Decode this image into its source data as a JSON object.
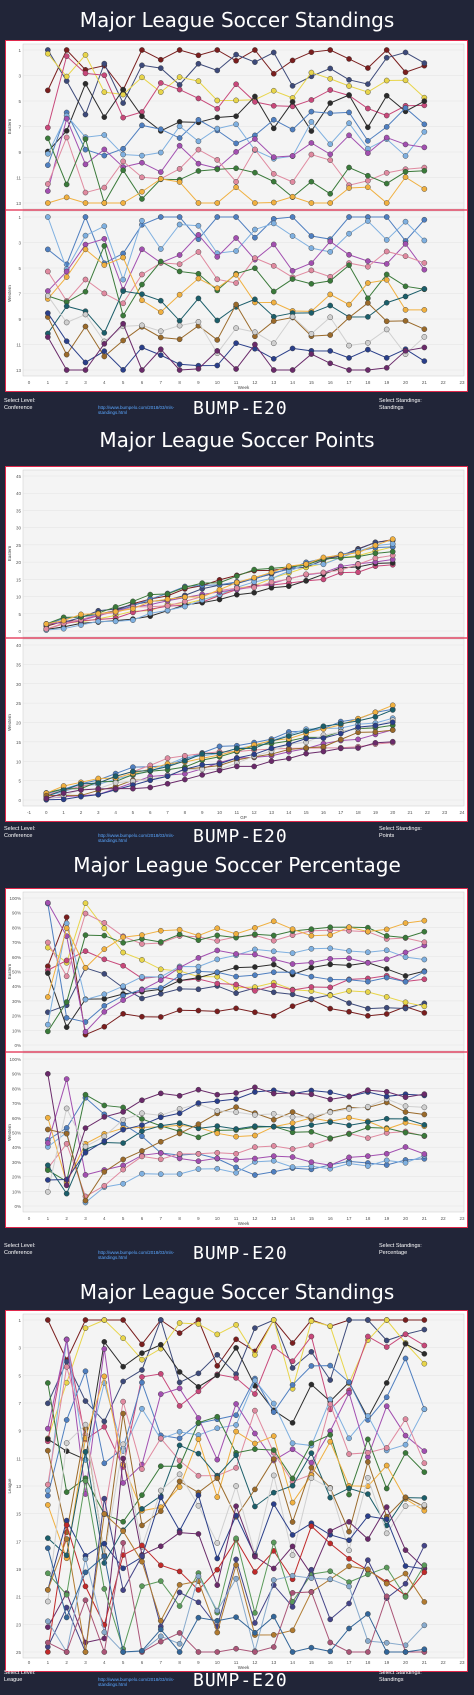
{
  "panels": [
    {
      "title": "Major League Soccer Standings",
      "xlabel": "Week",
      "sections": [
        {
          "label": "Eastern",
          "ticks": [
            "1",
            "3",
            "5",
            "7",
            "9",
            "11",
            "13"
          ]
        },
        {
          "label": "Western",
          "ticks": [
            "1",
            "3",
            "5",
            "7",
            "9",
            "11",
            "13"
          ]
        }
      ],
      "xticks": [
        "0",
        "1",
        "2",
        "3",
        "4",
        "5",
        "6",
        "7",
        "8",
        "9",
        "10",
        "11",
        "12",
        "13",
        "14",
        "15",
        "16",
        "17",
        "18",
        "19",
        "20",
        "21",
        "22",
        "23"
      ],
      "level": "Conference",
      "standings": "Standings"
    },
    {
      "title": "Major League Soccer Points",
      "xlabel": "GP",
      "sections": [
        {
          "label": "Eastern",
          "ticks": [
            "45",
            "40",
            "35",
            "30",
            "25",
            "20",
            "15",
            "10",
            "5",
            "0"
          ]
        },
        {
          "label": "Western",
          "ticks": [
            "40",
            "35",
            "30",
            "25",
            "20",
            "15",
            "10",
            "5",
            "0"
          ]
        }
      ],
      "xticks": [
        "-1",
        "0",
        "1",
        "2",
        "3",
        "4",
        "5",
        "6",
        "7",
        "8",
        "9",
        "10",
        "11",
        "12",
        "13",
        "14",
        "15",
        "16",
        "17",
        "18",
        "19",
        "20",
        "21",
        "22",
        "23",
        "24"
      ],
      "level": "Conference",
      "standings": "Points"
    },
    {
      "title": "Major League Soccer Percentage",
      "xlabel": "Week",
      "sections": [
        {
          "label": "Eastern",
          "ticks": [
            "100%",
            "90%",
            "80%",
            "70%",
            "60%",
            "50%",
            "40%",
            "30%",
            "20%",
            "10%",
            "0%"
          ]
        },
        {
          "label": "Western",
          "ticks": [
            "100%",
            "90%",
            "80%",
            "70%",
            "60%",
            "50%",
            "40%",
            "30%",
            "20%",
            "10%",
            "0%"
          ]
        }
      ],
      "xticks": [
        "0",
        "1",
        "2",
        "3",
        "4",
        "5",
        "6",
        "7",
        "8",
        "9",
        "10",
        "11",
        "12",
        "13",
        "14",
        "15",
        "16",
        "17",
        "18",
        "19",
        "20",
        "21",
        "22",
        "23"
      ],
      "level": "Conference",
      "standings": "Percentage"
    },
    {
      "title": "Major League Soccer Standings",
      "xlabel": "Week",
      "sections": [
        {
          "label": "League",
          "ticks": [
            "1",
            "3",
            "5",
            "7",
            "9",
            "11",
            "13",
            "15",
            "17",
            "19",
            "21",
            "23",
            "25"
          ]
        }
      ],
      "xticks": [
        "0",
        "1",
        "2",
        "3",
        "4",
        "5",
        "6",
        "7",
        "8",
        "9",
        "10",
        "11",
        "12",
        "13",
        "14",
        "15",
        "16",
        "17",
        "18",
        "19",
        "20",
        "21",
        "22",
        "23"
      ],
      "level": "League",
      "standings": "Standings"
    }
  ],
  "footer": {
    "select_level_label": "Select Level:",
    "select_standings_label": "Select Standings:",
    "url": "http://www.bumpelo.com/2018/03/mls-standings.html",
    "logo": "BUMP-E20"
  },
  "colors": {
    "background": "#212538",
    "accent": "#e0284b",
    "link": "#5aa7ff",
    "plot_bg": "#f4f4f4"
  },
  "chart_data": [
    {
      "type": "line",
      "title": "Major League Soccer Standings",
      "xlabel": "Week",
      "ylabel": "Eastern / Western",
      "x_range": [
        0,
        23
      ],
      "ylim": [
        1,
        13
      ],
      "note_values": "team rank per week (bump chart)"
    },
    {
      "type": "line",
      "title": "Major League Soccer Points",
      "xlabel": "GP",
      "ylabel": "Eastern / Western",
      "x_range": [
        -1,
        24
      ],
      "ylim": [
        0,
        45
      ]
    },
    {
      "type": "line",
      "title": "Major League Soccer Percentage",
      "xlabel": "Week",
      "ylabel": "Eastern / Western",
      "x_range": [
        0,
        23
      ],
      "ylim": [
        0,
        100
      ]
    },
    {
      "type": "line",
      "title": "Major League Soccer Standings",
      "xlabel": "Week",
      "ylabel": "League",
      "x_range": [
        0,
        23
      ],
      "ylim": [
        1,
        25
      ]
    }
  ]
}
